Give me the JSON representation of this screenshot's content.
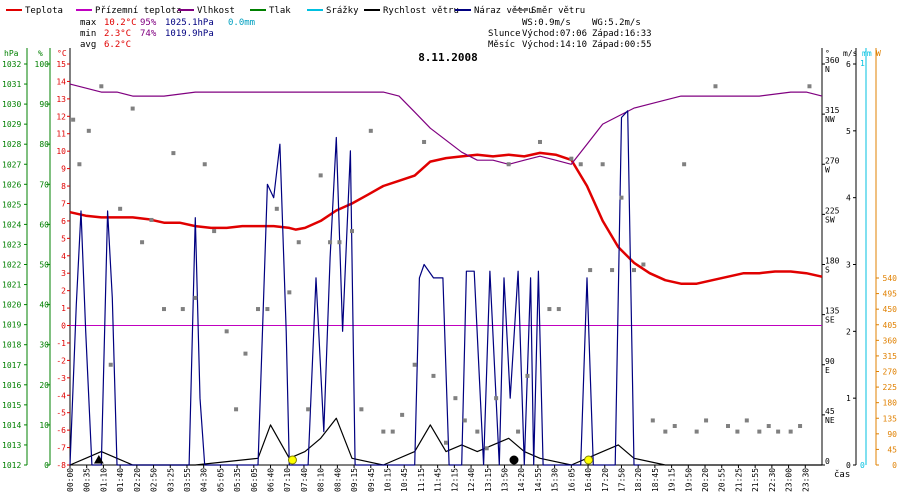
{
  "legend": [
    {
      "label": "Teplota",
      "color": "#e00000"
    },
    {
      "label": "Přízemní teplota",
      "color": "#c000c0"
    },
    {
      "label": "Vlhkost",
      "color": "#800080"
    },
    {
      "label": "Tlak",
      "color": "#008000"
    },
    {
      "label": "Srážky",
      "color": "#00c0e0"
    },
    {
      "label": "Rychlost větru",
      "color": "#000000"
    },
    {
      "label": "Náraz větru",
      "color": "#000080"
    },
    {
      "label": "Směr větru",
      "color": "#808080"
    }
  ],
  "stats": {
    "max": {
      "label": "max",
      "temp": "10.2°C",
      "hum": "95%",
      "pres": "1025.1hPa",
      "rain": "0.0mm"
    },
    "min": {
      "label": "min",
      "temp": "2.3°C",
      "hum": "74%",
      "pres": "1019.9hPa"
    },
    "avg": {
      "label": "avg",
      "temp": "6.2°C"
    }
  },
  "wind_summary": {
    "ws": "WS:0.9m/s",
    "wg": "WG:5.2m/s"
  },
  "sun": {
    "label": "Slunce",
    "rise": "Východ:07:06",
    "set": "Západ:16:33"
  },
  "moon": {
    "label": "Měsíc",
    "rise": "Východ:14:10",
    "set": "Západ:00:55"
  },
  "chart_data": {
    "type": "line",
    "title": "8.11.2008",
    "xlabel": "čas",
    "x_ticks": [
      "00:00",
      "00:35",
      "01:10",
      "01:40",
      "02:20",
      "02:50",
      "03:25",
      "03:55",
      "04:30",
      "05:05",
      "05:35",
      "06:05",
      "06:40",
      "07:10",
      "07:40",
      "08:10",
      "08:40",
      "09:15",
      "09:45",
      "10:15",
      "10:45",
      "11:15",
      "11:45",
      "12:15",
      "12:40",
      "13:15",
      "13:50",
      "14:20",
      "14:55",
      "15:30",
      "16:05",
      "16:40",
      "17:20",
      "17:50",
      "18:20",
      "18:45",
      "19:15",
      "19:50",
      "20:20",
      "20:55",
      "21:25",
      "21:55",
      "22:30",
      "23:00",
      "23:30"
    ],
    "axes": {
      "pressure": {
        "label": "hPa",
        "color": "#008000",
        "min": 1012,
        "max": 1032,
        "ticks": [
          1012,
          1013,
          1014,
          1015,
          1016,
          1017,
          1018,
          1019,
          1020,
          1021,
          1022,
          1023,
          1024,
          1025,
          1026,
          1027,
          1028,
          1029,
          1030,
          1031,
          1032
        ]
      },
      "humidity": {
        "label": "%",
        "color": "#008000",
        "min": 0,
        "max": 100,
        "ticks": [
          0,
          10,
          20,
          30,
          40,
          50,
          60,
          70,
          80,
          90,
          100
        ]
      },
      "temperature": {
        "label": "°C",
        "color": "#e00000",
        "min": -8,
        "max": 15,
        "ticks": [
          -8,
          -7,
          -6,
          -5,
          -4,
          -3,
          -2,
          -1,
          0,
          1,
          2,
          3,
          4,
          5,
          6,
          7,
          8,
          9,
          10,
          11,
          12,
          13,
          14,
          15
        ]
      },
      "direction": {
        "label": "°",
        "min": 0,
        "max": 360,
        "ticks": [
          0,
          45,
          90,
          135,
          180,
          225,
          270,
          315,
          360
        ],
        "compass": [
          "",
          "NE",
          "E",
          "SE",
          "S",
          "SW",
          "W",
          "NW",
          "N"
        ]
      },
      "wind_speed": {
        "label": "m/s",
        "min": 0,
        "max": 6,
        "ticks": [
          0,
          1,
          2,
          3,
          4,
          5,
          6
        ]
      },
      "rain": {
        "label": "mm",
        "color": "#00c0e0",
        "ticks": [
          0,
          1
        ]
      },
      "radiation": {
        "label": "W",
        "color": "#e08000",
        "min": 0,
        "max": 540,
        "ticks": [
          0,
          45,
          90,
          135,
          180,
          225,
          270,
          315,
          360,
          405,
          450,
          495,
          540
        ]
      }
    },
    "series": [
      {
        "name": "Teplota",
        "color": "#e00000",
        "axis": "temperature",
        "x": [
          0,
          0.5,
          1,
          1.5,
          2,
          2.5,
          3,
          3.5,
          4,
          4.5,
          5,
          5.5,
          6,
          6.5,
          7,
          7.2,
          7.5,
          8,
          8.5,
          9,
          9.5,
          10,
          10.5,
          11,
          11.5,
          12,
          12.5,
          13,
          13.5,
          14,
          14.5,
          15,
          15.5,
          16,
          16.5,
          17,
          17.5,
          18,
          18.5,
          19,
          19.5,
          20,
          20.5,
          21,
          21.5,
          22,
          22.5,
          23,
          23.5,
          24
        ],
        "values": [
          6.5,
          6.3,
          6.2,
          6.2,
          6.2,
          6.1,
          5.9,
          5.9,
          5.7,
          5.6,
          5.6,
          5.7,
          5.7,
          5.7,
          5.6,
          5.5,
          5.6,
          6.0,
          6.6,
          7.0,
          7.5,
          8.0,
          8.3,
          8.6,
          9.4,
          9.6,
          9.7,
          9.8,
          9.7,
          9.8,
          9.7,
          9.9,
          9.8,
          9.5,
          8.0,
          6.0,
          4.5,
          3.6,
          3.0,
          2.6,
          2.4,
          2.4,
          2.6,
          2.8,
          3.0,
          3.0,
          3.1,
          3.1,
          3.0,
          2.8
        ]
      },
      {
        "name": "Vlhkost",
        "color": "#800080",
        "axis": "humidity",
        "x": [
          0,
          0.5,
          1,
          1.5,
          2,
          3,
          4,
          5,
          6,
          7,
          8,
          9,
          10,
          10.5,
          11,
          11.5,
          12,
          12.5,
          13,
          13.5,
          14,
          14.5,
          15,
          15.5,
          16,
          16.5,
          17,
          17.5,
          18,
          18.5,
          19,
          19.5,
          20,
          21,
          22,
          23,
          23.5,
          24
        ],
        "values": [
          95,
          94,
          93,
          93,
          92,
          92,
          93,
          93,
          93,
          93,
          93,
          93,
          93,
          92,
          88,
          84,
          81,
          78,
          76,
          76,
          75,
          76,
          77,
          76,
          75,
          80,
          85,
          87,
          89,
          90,
          91,
          92,
          92,
          92,
          92,
          93,
          93,
          92
        ]
      },
      {
        "name": "Rychlost větru",
        "color": "#000000",
        "axis": "wind_speed",
        "x": [
          0,
          0.5,
          1,
          1.5,
          2,
          4,
          6,
          6.4,
          7,
          7.5,
          8,
          8.5,
          9,
          10,
          11,
          11.5,
          12,
          12.5,
          13,
          13.5,
          14,
          14.5,
          15,
          16,
          16.5,
          17,
          17.5,
          18,
          19,
          20,
          21,
          22,
          23,
          24
        ],
        "values": [
          0,
          0.1,
          0.2,
          0.1,
          0,
          0,
          0.1,
          0.6,
          0.1,
          0.2,
          0.4,
          0.7,
          0.1,
          0,
          0.2,
          0.6,
          0.2,
          0.3,
          0.2,
          0.3,
          0.4,
          0.2,
          0.1,
          0,
          0.1,
          0.2,
          0.3,
          0.1,
          0,
          0,
          0,
          0,
          0,
          0
        ]
      },
      {
        "name": "Náraz větru",
        "color": "#000080",
        "axis": "wind_speed",
        "x": [
          0,
          0.2,
          0.35,
          0.5,
          0.7,
          1.0,
          1.2,
          1.35,
          1.5,
          3.8,
          4.0,
          4.15,
          4.3,
          6.0,
          6.3,
          6.5,
          6.7,
          6.9,
          7.0,
          7.6,
          7.85,
          8.1,
          8.3,
          8.5,
          8.7,
          8.95,
          9.1,
          11.0,
          11.15,
          11.3,
          11.6,
          11.9,
          12.1,
          12.5,
          12.65,
          12.9,
          13.2,
          13.4,
          13.7,
          13.85,
          14.05,
          14.3,
          14.5,
          14.7,
          14.8,
          14.95,
          15.1,
          16.3,
          16.5,
          16.7,
          16.9,
          17.4,
          17.6,
          17.8,
          18.0,
          18.2
        ],
        "values": [
          0,
          2.4,
          3.8,
          2.0,
          0,
          0,
          3.8,
          2.5,
          0,
          0,
          3.7,
          1.0,
          0,
          0,
          4.2,
          4.0,
          4.8,
          2.0,
          0,
          0,
          2.8,
          0.5,
          3.1,
          4.9,
          2.0,
          4.7,
          0,
          0,
          2.8,
          3.0,
          2.8,
          2.8,
          0,
          0,
          2.9,
          2.9,
          0,
          2.9,
          0,
          2.8,
          1.0,
          2.9,
          0,
          2.8,
          0,
          2.9,
          0,
          0,
          2.8,
          0,
          0,
          0,
          5.2,
          5.3,
          0,
          0
        ]
      },
      {
        "name": "Směr větru",
        "color": "#808080",
        "axis": "direction",
        "marker": "square",
        "x": [
          0.1,
          0.3,
          0.6,
          1.0,
          1.3,
          1.6,
          2.0,
          2.3,
          2.6,
          3.0,
          3.3,
          3.6,
          4.0,
          4.3,
          4.6,
          5.0,
          5.3,
          5.6,
          6.0,
          6.3,
          6.6,
          7.0,
          7.3,
          7.6,
          8.0,
          8.3,
          8.6,
          9.0,
          9.3,
          9.6,
          10.0,
          10.3,
          10.6,
          11.0,
          11.3,
          11.6,
          12.0,
          12.3,
          12.6,
          13.0,
          13.3,
          13.6,
          14.0,
          14.3,
          14.6,
          15.0,
          15.3,
          15.6,
          16.0,
          16.3,
          16.6,
          17.0,
          17.3,
          17.6,
          18.0,
          18.3,
          18.6,
          19.0,
          19.3,
          19.6,
          20.0,
          20.3,
          20.6,
          21.0,
          21.3,
          21.6,
          22.0,
          22.3,
          22.6,
          23.0,
          23.3,
          23.6
        ],
        "values": [
          310,
          270,
          300,
          340,
          90,
          230,
          320,
          200,
          220,
          140,
          280,
          140,
          150,
          270,
          210,
          120,
          50,
          100,
          140,
          140,
          230,
          155,
          200,
          50,
          260,
          200,
          200,
          210,
          50,
          300,
          30,
          30,
          45,
          90,
          290,
          80,
          20,
          60,
          40,
          30,
          15,
          60,
          270,
          30,
          80,
          290,
          140,
          140,
          275,
          270,
          175,
          270,
          175,
          240,
          175,
          180,
          40,
          30,
          35,
          270,
          30,
          40,
          340,
          35,
          30,
          40,
          30,
          35,
          30,
          30,
          35,
          340
        ]
      }
    ],
    "markers": [
      {
        "name": "sunrise",
        "x": 7.1,
        "color": "#ffff00",
        "stroke": "#808000"
      },
      {
        "name": "moonrise",
        "x": 14.17,
        "color": "#000000",
        "stroke": "#000000"
      },
      {
        "name": "sunset",
        "x": 16.55,
        "color": "#ffff00",
        "stroke": "#808000"
      },
      {
        "name": "moonset",
        "x": 0.92,
        "color": "#000000",
        "stroke": "#000000",
        "shape": "triangle"
      }
    ],
    "zero_line": {
      "axis": "temperature",
      "value": 0,
      "color": "#c000c0"
    },
    "grid": false
  }
}
